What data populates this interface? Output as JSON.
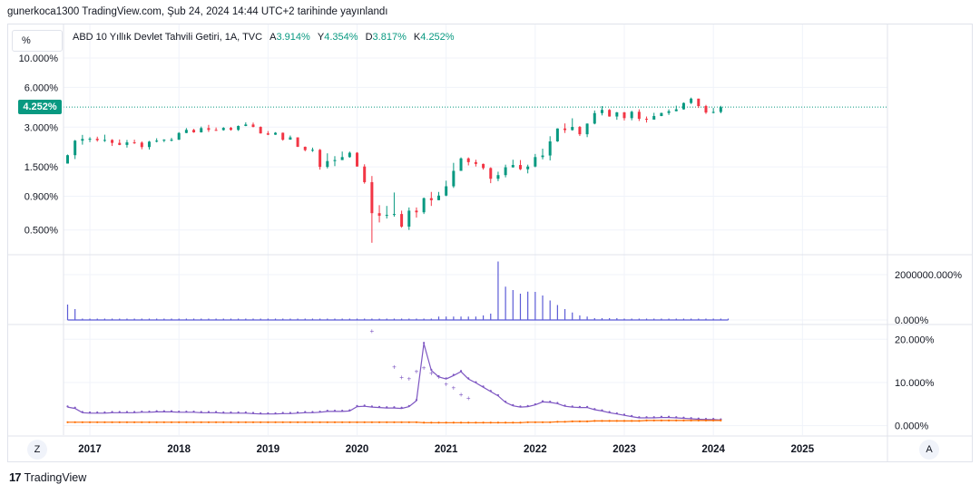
{
  "header": {
    "publish_text": "gunerkoca1300 TradingView.com, Şub 24, 2024 14:44 UTC+2 tarihinde yayınlandı"
  },
  "toolbar": {
    "scale_label": "%"
  },
  "legend": {
    "title": "ABD 10 Yıllık Devlet Tahvili Getiri, 1A, TVC",
    "open_label": "A",
    "open_value": "3.914%",
    "high_label": "Y",
    "high_value": "4.354%",
    "low_label": "D",
    "low_value": "3.817%",
    "close_label": "K",
    "close_value": "4.252%"
  },
  "price_badge": "4.252%",
  "footer": {
    "z_button": "Z",
    "a_button": "A",
    "brand": "TradingView",
    "brand_mark": "17"
  },
  "colors": {
    "up": "#089981",
    "down": "#f23645",
    "volume": "#5b5bd6",
    "line": "#7e57c2",
    "orange": "#ff6d00",
    "grid": "#f0f3fa"
  },
  "chart_data": [
    {
      "type": "candlestick",
      "yscale": "log",
      "yticks": [
        "10.000%",
        "6.000%",
        "3.000%",
        "1.500%",
        "0.900%",
        "0.500%"
      ],
      "ytick_values": [
        10,
        6,
        3,
        1.5,
        0.9,
        0.5
      ],
      "ylim": [
        0.33,
        11
      ],
      "x": [
        "2016-10",
        "2016-11",
        "2016-12",
        "2017-01",
        "2017-02",
        "2017-03",
        "2017-04",
        "2017-05",
        "2017-06",
        "2017-07",
        "2017-08",
        "2017-09",
        "2017-10",
        "2017-11",
        "2017-12",
        "2018-01",
        "2018-02",
        "2018-03",
        "2018-04",
        "2018-05",
        "2018-06",
        "2018-07",
        "2018-08",
        "2018-09",
        "2018-10",
        "2018-11",
        "2018-12",
        "2019-01",
        "2019-02",
        "2019-03",
        "2019-04",
        "2019-05",
        "2019-06",
        "2019-07",
        "2019-08",
        "2019-09",
        "2019-10",
        "2019-11",
        "2019-12",
        "2020-01",
        "2020-02",
        "2020-03",
        "2020-04",
        "2020-05",
        "2020-06",
        "2020-07",
        "2020-08",
        "2020-09",
        "2020-10",
        "2020-11",
        "2020-12",
        "2021-01",
        "2021-02",
        "2021-03",
        "2021-04",
        "2021-05",
        "2021-06",
        "2021-07",
        "2021-08",
        "2021-09",
        "2021-10",
        "2021-11",
        "2021-12",
        "2022-01",
        "2022-02",
        "2022-03",
        "2022-04",
        "2022-05",
        "2022-06",
        "2022-07",
        "2022-08",
        "2022-09",
        "2022-10",
        "2022-11",
        "2022-12",
        "2023-01",
        "2023-02",
        "2023-03",
        "2023-04",
        "2023-05",
        "2023-06",
        "2023-07",
        "2023-08",
        "2023-09",
        "2023-10",
        "2023-11",
        "2023-12",
        "2024-01",
        "2024-02"
      ],
      "open": [
        1.59,
        1.84,
        2.37,
        2.44,
        2.45,
        2.39,
        2.4,
        2.28,
        2.2,
        2.3,
        2.29,
        2.12,
        2.33,
        2.37,
        2.41,
        2.41,
        2.71,
        2.86,
        2.74,
        2.95,
        2.86,
        2.85,
        2.96,
        2.86,
        3.06,
        3.14,
        3.01,
        2.69,
        2.63,
        2.72,
        2.41,
        2.51,
        2.13,
        2.01,
        2.02,
        1.5,
        1.66,
        1.69,
        1.78,
        1.92,
        1.51,
        1.15,
        0.67,
        0.64,
        0.65,
        0.66,
        0.53,
        0.7,
        0.68,
        0.87,
        0.84,
        0.91,
        1.07,
        1.4,
        1.74,
        1.63,
        1.58,
        1.47,
        1.22,
        1.3,
        1.49,
        1.55,
        1.44,
        1.51,
        1.78,
        1.83,
        2.34,
        2.93,
        2.85,
        3.01,
        2.65,
        3.19,
        3.83,
        4.05,
        3.61,
        3.88,
        3.51,
        3.92,
        3.47,
        3.42,
        3.64,
        3.84,
        3.96,
        4.09,
        4.57,
        4.93,
        4.33,
        3.87,
        3.91
      ],
      "high": [
        1.86,
        2.4,
        2.62,
        2.52,
        2.54,
        2.63,
        2.43,
        2.42,
        2.4,
        2.41,
        2.34,
        2.36,
        2.47,
        2.43,
        2.49,
        2.75,
        2.95,
        2.91,
        3.03,
        3.12,
        2.98,
        3.0,
        3.01,
        3.09,
        3.26,
        3.25,
        3.04,
        2.8,
        2.75,
        2.73,
        2.59,
        2.51,
        2.14,
        2.1,
        2.05,
        1.9,
        1.81,
        1.96,
        1.96,
        1.94,
        1.57,
        1.28,
        0.77,
        0.76,
        0.96,
        0.7,
        0.74,
        0.74,
        0.88,
        0.97,
        0.97,
        1.18,
        1.61,
        1.77,
        1.77,
        1.7,
        1.59,
        1.49,
        1.38,
        1.56,
        1.7,
        1.69,
        1.56,
        1.88,
        2.06,
        2.56,
        2.94,
        3.2,
        3.5,
        3.06,
        3.2,
        4.01,
        4.33,
        4.11,
        3.91,
        3.91,
        3.99,
        4.09,
        3.61,
        3.85,
        3.86,
        4.09,
        4.36,
        4.61,
        5.02,
        4.93,
        4.42,
        4.19,
        4.35
      ],
      "low": [
        1.59,
        1.72,
        2.21,
        2.31,
        2.33,
        2.32,
        2.16,
        2.19,
        2.1,
        2.24,
        2.04,
        2.03,
        2.3,
        2.31,
        2.34,
        2.4,
        2.7,
        2.72,
        2.73,
        2.76,
        2.81,
        2.82,
        2.82,
        2.81,
        3.05,
        2.99,
        2.68,
        2.61,
        2.62,
        2.37,
        2.42,
        2.12,
        1.97,
        1.95,
        1.43,
        1.46,
        1.52,
        1.69,
        1.76,
        1.51,
        1.12,
        0.4,
        0.57,
        0.61,
        0.63,
        0.52,
        0.5,
        0.62,
        0.66,
        0.76,
        0.84,
        0.9,
        1.04,
        1.4,
        1.54,
        1.51,
        1.43,
        1.13,
        1.17,
        1.25,
        1.48,
        1.42,
        1.34,
        1.49,
        1.71,
        1.68,
        2.32,
        2.71,
        2.82,
        2.57,
        2.52,
        3.15,
        3.68,
        3.6,
        3.41,
        3.37,
        3.38,
        3.34,
        3.25,
        3.43,
        3.63,
        3.71,
        3.95,
        4.07,
        4.49,
        4.19,
        3.78,
        3.81,
        3.82
      ],
      "close": [
        1.84,
        2.37,
        2.44,
        2.45,
        2.39,
        2.4,
        2.28,
        2.2,
        2.3,
        2.29,
        2.12,
        2.33,
        2.37,
        2.41,
        2.41,
        2.71,
        2.86,
        2.74,
        2.95,
        2.86,
        2.85,
        2.96,
        2.86,
        3.06,
        3.14,
        3.01,
        2.69,
        2.63,
        2.72,
        2.41,
        2.51,
        2.13,
        2.01,
        2.02,
        1.5,
        1.66,
        1.69,
        1.78,
        1.92,
        1.51,
        1.15,
        0.67,
        0.64,
        0.65,
        0.66,
        0.53,
        0.7,
        0.68,
        0.87,
        0.84,
        0.91,
        1.07,
        1.4,
        1.74,
        1.63,
        1.58,
        1.47,
        1.22,
        1.3,
        1.49,
        1.55,
        1.44,
        1.51,
        1.78,
        1.83,
        2.34,
        2.93,
        2.85,
        3.01,
        2.65,
        3.19,
        3.83,
        4.05,
        3.61,
        3.88,
        3.51,
        3.92,
        3.47,
        3.42,
        3.64,
        3.84,
        3.96,
        4.09,
        4.57,
        4.93,
        4.33,
        3.87,
        3.91,
        4.25
      ],
      "last_price": 4.252
    },
    {
      "type": "bar",
      "yticks": [
        "2000000.000%",
        "0.000%"
      ],
      "ytick_values": [
        2000000,
        0
      ],
      "ylim": [
        0,
        2800000
      ],
      "values": [
        680000,
        480000,
        60000,
        60000,
        60000,
        60000,
        60000,
        60000,
        60000,
        60000,
        60000,
        60000,
        60000,
        60000,
        60000,
        60000,
        60000,
        60000,
        60000,
        60000,
        60000,
        60000,
        60000,
        60000,
        60000,
        60000,
        60000,
        60000,
        60000,
        60000,
        60000,
        60000,
        60000,
        60000,
        60000,
        60000,
        60000,
        60000,
        60000,
        60000,
        60000,
        60000,
        60000,
        60000,
        60000,
        60000,
        60000,
        60000,
        60000,
        60000,
        150000,
        150000,
        150000,
        150000,
        150000,
        150000,
        200000,
        280000,
        2580000,
        1470000,
        1320000,
        1160000,
        1250000,
        1240000,
        1080000,
        860000,
        660000,
        480000,
        330000,
        200000,
        150000,
        80000,
        80000,
        80000,
        80000,
        60000,
        60000,
        60000,
        60000,
        60000,
        60000,
        60000,
        60000,
        60000,
        60000,
        60000,
        60000,
        60000,
        60000,
        60000
      ]
    },
    {
      "type": "line",
      "yticks": [
        "20.000%",
        "10.000%",
        "0.000%"
      ],
      "ytick_values": [
        20,
        10,
        0
      ],
      "ylim": [
        -0.5,
        23
      ],
      "series": [
        {
          "values": [
            4.3,
            4.0,
            3.0,
            2.9,
            2.9,
            2.9,
            3.0,
            3.0,
            3.0,
            3.0,
            3.1,
            3.1,
            3.2,
            3.2,
            3.2,
            3.1,
            3.1,
            3.1,
            3.0,
            3.0,
            3.0,
            2.9,
            2.9,
            2.9,
            2.9,
            2.8,
            2.7,
            2.7,
            2.7,
            2.8,
            2.8,
            2.9,
            3.0,
            3.0,
            3.1,
            3.3,
            3.3,
            3.3,
            3.4,
            4.4,
            4.5,
            4.3,
            4.2,
            4.1,
            4.1,
            4.0,
            4.4,
            5.8,
            19.0,
            12.8,
            11.3,
            10.8,
            11.6,
            12.5,
            10.8,
            9.9,
            8.9,
            7.9,
            6.9,
            5.4,
            4.6,
            4.3,
            4.4,
            4.8,
            5.5,
            5.4,
            5.1,
            4.5,
            4.3,
            4.2,
            4.2,
            3.7,
            3.4,
            3.0,
            2.7,
            2.4,
            2.1,
            1.8,
            1.8,
            1.8,
            1.9,
            1.9,
            1.8,
            1.7,
            1.6,
            1.5,
            1.4,
            1.4,
            1.3
          ]
        },
        {
          "values": [
            0.8,
            0.8,
            0.8,
            0.8,
            0.8,
            0.8,
            0.8,
            0.8,
            0.8,
            0.8,
            0.8,
            0.8,
            0.8,
            0.8,
            0.8,
            0.8,
            0.8,
            0.8,
            0.8,
            0.8,
            0.8,
            0.8,
            0.8,
            0.8,
            0.8,
            0.8,
            0.8,
            0.8,
            0.8,
            0.8,
            0.8,
            0.8,
            0.8,
            0.8,
            0.8,
            0.8,
            0.8,
            0.8,
            0.8,
            0.8,
            0.8,
            0.8,
            0.8,
            0.8,
            0.8,
            0.8,
            0.8,
            0.8,
            0.7,
            0.7,
            0.7,
            0.7,
            0.7,
            0.7,
            0.7,
            0.7,
            0.7,
            0.7,
            0.7,
            0.7,
            0.7,
            0.7,
            0.8,
            0.8,
            0.8,
            0.8,
            0.9,
            0.9,
            1.0,
            1.0,
            1.0,
            1.1,
            1.1,
            1.1,
            1.1,
            1.1,
            1.1,
            1.1,
            1.2,
            1.2,
            1.2,
            1.2,
            1.2,
            1.2,
            1.2,
            1.2,
            1.2,
            1.2,
            1.2
          ]
        }
      ],
      "scatter_points": [
        [
          41,
          22.0
        ],
        [
          44,
          13.7
        ],
        [
          45,
          11.2
        ],
        [
          46,
          10.9
        ],
        [
          47,
          12.6
        ],
        [
          48,
          13.5
        ],
        [
          49,
          12.2
        ],
        [
          50,
          11.4
        ],
        [
          51,
          9.7
        ],
        [
          52,
          8.8
        ],
        [
          53,
          7.3
        ],
        [
          54,
          6.4
        ]
      ]
    }
  ],
  "x_axis": {
    "year_labels": [
      "2017",
      "2018",
      "2019",
      "2020",
      "2021",
      "2022",
      "2023",
      "2024",
      "2025"
    ]
  }
}
